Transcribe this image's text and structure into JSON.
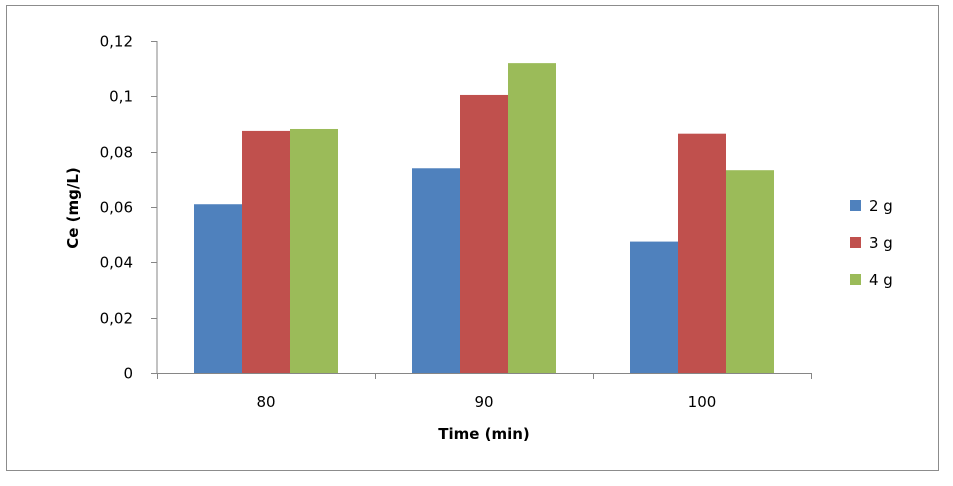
{
  "chart_data": {
    "type": "bar",
    "title": "",
    "xlabel": "Time (min)",
    "ylabel": "Ce (mg/L)",
    "categories": [
      "80",
      "90",
      "100"
    ],
    "series": [
      {
        "name": "2 g",
        "color": "#4f81bd",
        "values": [
          0.061,
          0.074,
          0.0475
        ]
      },
      {
        "name": "3 g",
        "color": "#c0504d",
        "values": [
          0.0875,
          0.1005,
          0.0865
        ]
      },
      {
        "name": "4 g",
        "color": "#9bbb59",
        "values": [
          0.0882,
          0.112,
          0.0733
        ]
      }
    ],
    "ylim": [
      0,
      0.12
    ],
    "yticks": [
      0,
      0.02,
      0.04,
      0.06,
      0.08,
      0.1,
      0.12
    ],
    "ytick_labels": [
      "0",
      "0,02",
      "0,04",
      "0,06",
      "0,08",
      "0,1",
      "0,12"
    ],
    "grid": false,
    "legend": "right"
  }
}
